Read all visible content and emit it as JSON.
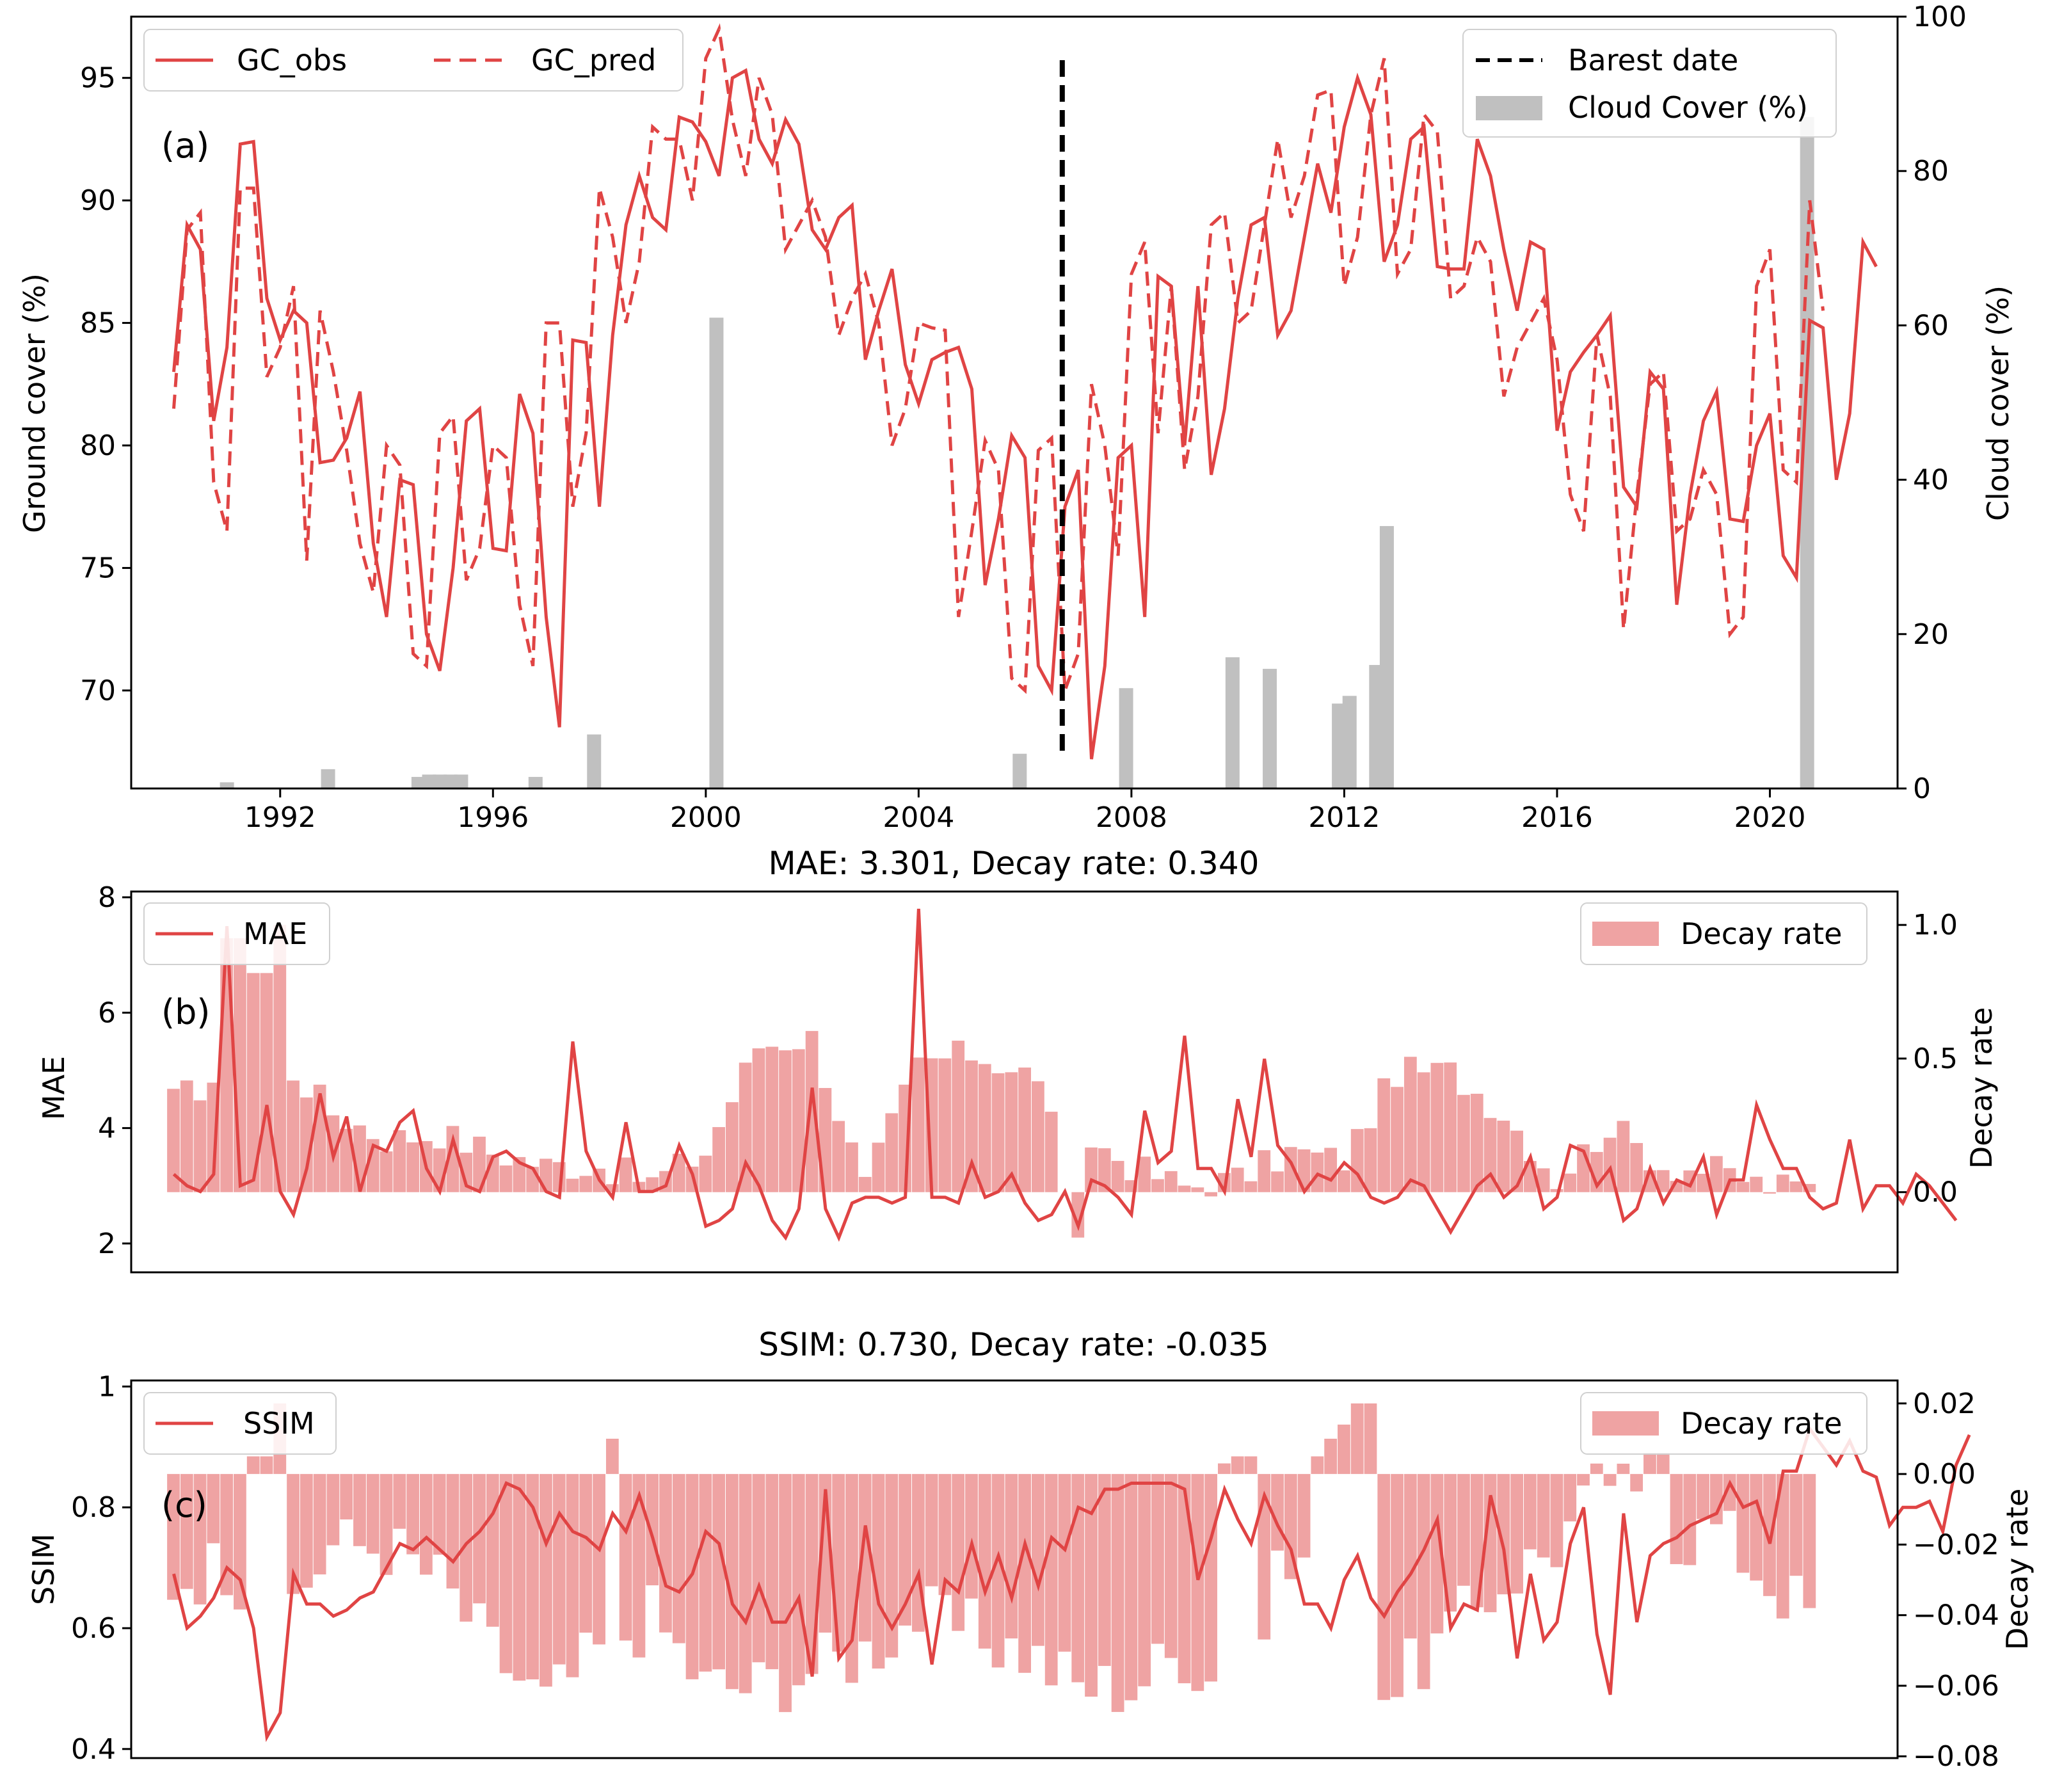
{
  "colors": {
    "line": "#e04444",
    "bar": "#efa3a3",
    "cloud": "#c0c0c0",
    "barest": "#000000"
  },
  "chart_data": [
    {
      "id": "a",
      "type": "line",
      "panel_label": "(a)",
      "ylabel": "Ground cover (%)",
      "ylabel_right": "Cloud cover (%)",
      "xlim": [
        1989.2,
        2022.4
      ],
      "ylim": [
        66.0,
        97.5
      ],
      "ylim_right": [
        0,
        100
      ],
      "xticks": [
        1992,
        1996,
        2000,
        2004,
        2008,
        2012,
        2016,
        2020
      ],
      "yticks": [
        70,
        75,
        80,
        85,
        90,
        95
      ],
      "yticks_right": [
        0,
        20,
        40,
        60,
        80,
        100
      ],
      "legend": {
        "obs": "GC_obs",
        "pred": "GC_pred",
        "barest": "Barest date",
        "cloud": "Cloud Cover (%)"
      },
      "barest_date": 2006.7,
      "x_start": 1990.0,
      "x_step": 0.25,
      "gc_obs": [
        83.0,
        89.0,
        88.0,
        81.0,
        84.0,
        92.3,
        92.4,
        86.0,
        84.3,
        85.5,
        85.0,
        79.3,
        79.4,
        80.3,
        82.2,
        76.0,
        73.0,
        78.6,
        78.4,
        72.3,
        70.8,
        75.0,
        81.0,
        81.5,
        75.8,
        75.7,
        82.1,
        80.5,
        73.0,
        68.5,
        84.3,
        84.2,
        77.5,
        84.5,
        89.0,
        91.0,
        89.3,
        88.8,
        93.4,
        93.2,
        92.4,
        91.0,
        95.0,
        95.3,
        92.5,
        91.5,
        93.3,
        92.3,
        88.8,
        88.0,
        89.3,
        89.8,
        83.5,
        85.5,
        87.2,
        83.3,
        81.7,
        83.5,
        83.8,
        84.0,
        82.3,
        74.3,
        77.0,
        80.4,
        79.5,
        71.0,
        70.0,
        77.5,
        79.0,
        67.2,
        71.0,
        79.5,
        80.0,
        73.0,
        86.9,
        86.5,
        80.0,
        86.5,
        78.8,
        81.5,
        86.0,
        89.0,
        89.3,
        84.5,
        85.5,
        88.5,
        91.5,
        89.5,
        93.0,
        95.0,
        93.5,
        87.5,
        89.0,
        92.5,
        93.0,
        87.3,
        87.2,
        87.2,
        92.5,
        91.0,
        88.0,
        85.5,
        88.3,
        88.0,
        80.6,
        83.0,
        83.8,
        84.5,
        85.3,
        78.3,
        77.5,
        83.0,
        82.3,
        73.5,
        78.0,
        81.0,
        82.2,
        77.0,
        76.9,
        80.0,
        81.3,
        75.5,
        74.6,
        85.1,
        84.8,
        78.6,
        81.3,
        88.3,
        87.3
      ],
      "gc_pred": [
        81.5,
        88.8,
        89.5,
        78.5,
        76.5,
        90.5,
        90.5,
        82.8,
        84.0,
        86.5,
        75.3,
        85.5,
        83.0,
        79.8,
        76.0,
        74.0,
        80.0,
        79.2,
        71.5,
        71.0,
        80.5,
        81.2,
        74.5,
        75.8,
        80.0,
        79.5,
        73.5,
        71.0,
        85.0,
        85.0,
        77.5,
        80.5,
        90.5,
        88.5,
        85.0,
        87.5,
        93.0,
        92.5,
        92.5,
        90.0,
        95.8,
        97.0,
        93.3,
        91.0,
        95.0,
        93.5,
        88.0,
        89.0,
        90.0,
        88.5,
        84.5,
        86.0,
        87.0,
        85.0,
        80.0,
        81.5,
        85.0,
        84.8,
        84.7,
        73.0,
        76.5,
        80.2,
        79.0,
        70.5,
        70.0,
        79.8,
        80.3,
        70.0,
        71.5,
        82.5,
        80.0,
        75.5,
        87.0,
        88.3,
        80.5,
        86.5,
        79.0,
        82.0,
        89.0,
        89.5,
        85.0,
        85.5,
        89.0,
        92.5,
        89.3,
        91.0,
        94.3,
        94.5,
        86.5,
        88.5,
        93.5,
        95.8,
        87.0,
        88.0,
        93.5,
        92.8,
        86.0,
        86.5,
        88.5,
        87.5,
        82.0,
        84.0,
        85.0,
        86.0,
        83.5,
        78.0,
        76.5,
        84.5,
        82.0,
        72.5,
        78.0,
        82.5,
        83.0,
        76.5,
        77.0,
        79.0,
        78.0,
        72.3,
        73.0,
        86.5,
        88.0,
        79.0,
        78.5,
        90.0,
        85.5
      ]
    },
    {
      "id": "b",
      "type": "line",
      "panel_label": "(b)",
      "title": "MAE: 3.301, Decay rate: 0.340",
      "ylabel": "MAE",
      "ylabel_right": "Decay rate",
      "xlim": [
        1989.2,
        2022.4
      ],
      "ylim": [
        1.5,
        8.1
      ],
      "ylim_right": [
        -0.3,
        1.125
      ],
      "yticks": [
        2,
        4,
        6,
        8
      ],
      "yticks_right": [
        0.0,
        0.5,
        1.0
      ],
      "yticks_right_labels": [
        "0.0",
        "0.5",
        "1.0"
      ],
      "legend": {
        "line": "MAE",
        "bar": "Decay rate"
      },
      "x_start": 1990.0,
      "x_step": 0.25,
      "mae": [
        3.2,
        3.0,
        2.9,
        3.2,
        7.5,
        3.0,
        3.1,
        4.4,
        2.9,
        2.5,
        3.3,
        4.6,
        3.5,
        4.2,
        2.9,
        3.7,
        3.6,
        4.1,
        4.3,
        3.3,
        2.9,
        3.8,
        3.0,
        2.9,
        3.5,
        3.6,
        3.4,
        3.3,
        2.9,
        2.8,
        5.5,
        3.6,
        3.1,
        2.8,
        4.1,
        2.9,
        2.9,
        3.0,
        3.7,
        3.2,
        2.3,
        2.4,
        2.6,
        3.4,
        3.0,
        2.4,
        2.1,
        2.6,
        4.7,
        2.6,
        2.1,
        2.7,
        2.8,
        2.8,
        2.7,
        2.8,
        7.8,
        2.8,
        2.8,
        2.7,
        3.4,
        2.8,
        2.9,
        3.2,
        2.7,
        2.4,
        2.5,
        2.9,
        2.3,
        3.1,
        3.0,
        2.8,
        2.5,
        4.3,
        3.4,
        3.6,
        5.6,
        3.3,
        3.3,
        2.9,
        4.5,
        3.5,
        5.2,
        3.7,
        3.4,
        2.9,
        3.2,
        3.1,
        3.4,
        3.2,
        2.8,
        2.7,
        2.8,
        3.1,
        3.0,
        2.6,
        2.2,
        2.6,
        3.0,
        3.2,
        2.8,
        3.0,
        3.5,
        2.6,
        2.8,
        3.7,
        3.6,
        3.0,
        3.3,
        2.4,
        2.6,
        3.3,
        2.7,
        3.1,
        3.0,
        3.5,
        2.5,
        3.1,
        3.1,
        4.4,
        3.8,
        3.3,
        3.3,
        2.8,
        2.6,
        2.7,
        3.8,
        2.6,
        3.0,
        3.0,
        2.7,
        3.2,
        3.0,
        2.7,
        2.4
      ]
    },
    {
      "id": "c",
      "type": "line",
      "panel_label": "(c)",
      "title": "SSIM: 0.730, Decay rate: -0.035",
      "ylabel": "SSIM",
      "ylabel_right": "Decay rate",
      "xlim": [
        1989.2,
        2022.4
      ],
      "ylim": [
        0.385,
        1.01
      ],
      "ylim_right": [
        -0.0805,
        0.0265
      ],
      "yticks": [
        0.4,
        0.6,
        0.8,
        1.0
      ],
      "yticks_right": [
        -0.08,
        -0.06,
        -0.04,
        -0.02,
        0.0,
        0.02
      ],
      "yticks_right_labels": [
        "−0.08",
        "−0.06",
        "−0.04",
        "−0.02",
        "0.00",
        "0.02"
      ],
      "legend": {
        "line": "SSIM",
        "bar": "Decay rate"
      },
      "x_start": 1990.0,
      "x_step": 0.25,
      "ssim": [
        0.69,
        0.6,
        0.62,
        0.65,
        0.7,
        0.68,
        0.6,
        0.42,
        0.46,
        0.69,
        0.64,
        0.64,
        0.62,
        0.63,
        0.65,
        0.66,
        0.7,
        0.74,
        0.73,
        0.75,
        0.73,
        0.71,
        0.74,
        0.76,
        0.79,
        0.84,
        0.83,
        0.8,
        0.74,
        0.79,
        0.76,
        0.75,
        0.73,
        0.79,
        0.76,
        0.82,
        0.75,
        0.67,
        0.66,
        0.69,
        0.76,
        0.74,
        0.64,
        0.61,
        0.67,
        0.61,
        0.61,
        0.65,
        0.52,
        0.83,
        0.55,
        0.58,
        0.77,
        0.64,
        0.6,
        0.64,
        0.69,
        0.54,
        0.68,
        0.66,
        0.74,
        0.66,
        0.72,
        0.65,
        0.74,
        0.67,
        0.75,
        0.73,
        0.8,
        0.79,
        0.83,
        0.83,
        0.84,
        0.84,
        0.84,
        0.84,
        0.83,
        0.68,
        0.75,
        0.83,
        0.78,
        0.74,
        0.82,
        0.77,
        0.73,
        0.64,
        0.64,
        0.6,
        0.68,
        0.72,
        0.65,
        0.62,
        0.66,
        0.69,
        0.73,
        0.78,
        0.6,
        0.64,
        0.63,
        0.82,
        0.73,
        0.55,
        0.69,
        0.58,
        0.61,
        0.74,
        0.8,
        0.59,
        0.49,
        0.79,
        0.61,
        0.72,
        0.74,
        0.75,
        0.77,
        0.78,
        0.79,
        0.84,
        0.8,
        0.81,
        0.74,
        0.86,
        0.86,
        0.93,
        0.9,
        0.87,
        0.91,
        0.86,
        0.85,
        0.77,
        0.8,
        0.8,
        0.81,
        0.76,
        0.87,
        0.92
      ]
    }
  ]
}
